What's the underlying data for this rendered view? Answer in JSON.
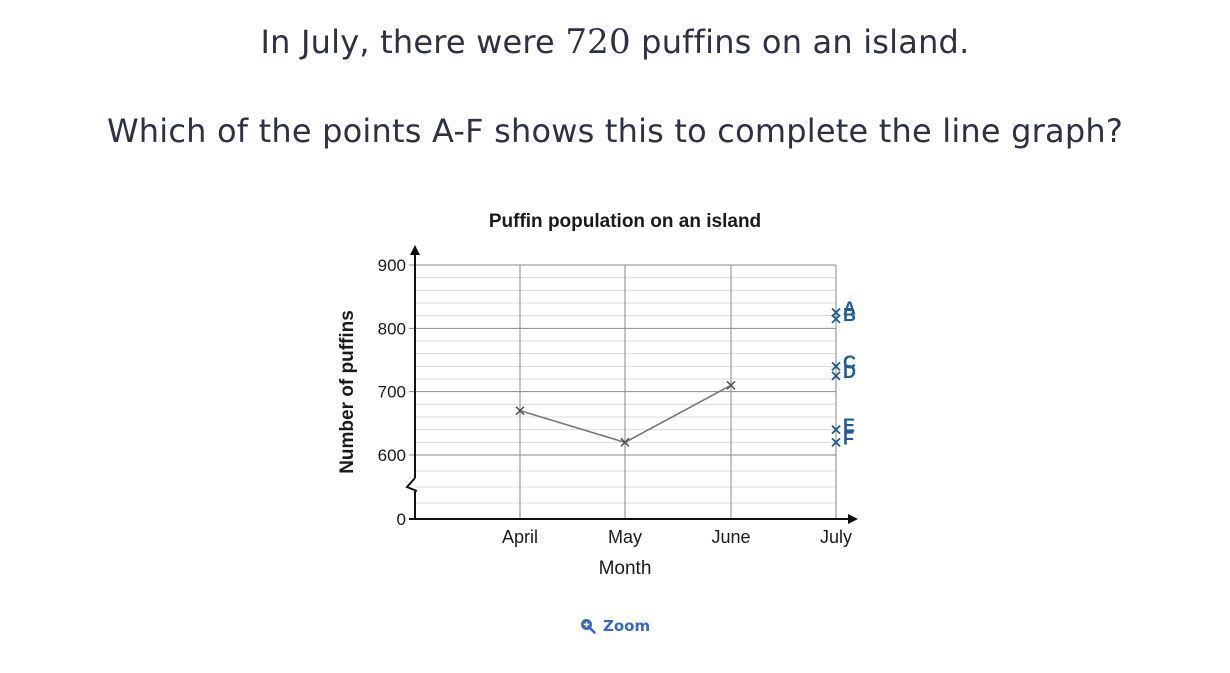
{
  "question": {
    "line1_before": "In July, there were ",
    "line1_number": "720",
    "line1_after": " puffins on an island.",
    "line2": "Which of the points A-F shows this to complete the line graph?"
  },
  "zoom_label": "Zoom",
  "colors": {
    "line": "#777777",
    "option": "#1f5c94",
    "grid": "#c8c8c8",
    "zoom": "#3a66c8"
  },
  "chart_data": {
    "type": "line",
    "title": "Puffin population on an island",
    "xlabel": "Month",
    "ylabel": "Number of puffins",
    "categories": [
      "April",
      "May",
      "June",
      "July"
    ],
    "series": [
      {
        "values": [
          670,
          620,
          710,
          null
        ]
      }
    ],
    "options": [
      {
        "label": "A",
        "x": "July",
        "y": 825
      },
      {
        "label": "B",
        "x": "July",
        "y": 815
      },
      {
        "label": "C",
        "x": "July",
        "y": 740
      },
      {
        "label": "D",
        "x": "July",
        "y": 725
      },
      {
        "label": "E",
        "x": "July",
        "y": 640
      },
      {
        "label": "F",
        "x": "July",
        "y": 620
      }
    ],
    "yticks": [
      "0",
      "600",
      "700",
      "800",
      "900"
    ],
    "ylim": [
      600,
      900
    ],
    "axis_break": true,
    "minor_step": 20,
    "grid": true,
    "legend": "none"
  }
}
